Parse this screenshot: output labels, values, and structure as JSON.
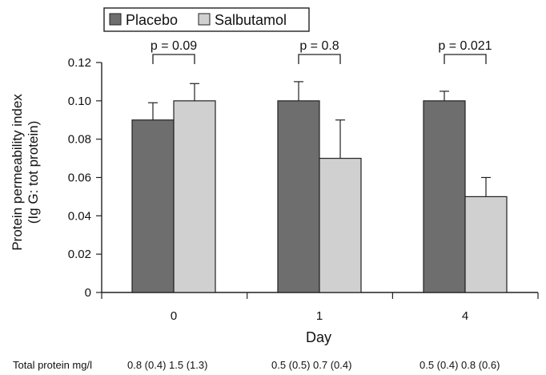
{
  "chart_data": {
    "type": "bar",
    "categories": [
      "0",
      "1",
      "4"
    ],
    "series": [
      {
        "name": "Placebo",
        "values": [
          0.09,
          0.1,
          0.1
        ],
        "errors": [
          0.009,
          0.01,
          0.005
        ]
      },
      {
        "name": "Salbutamol",
        "values": [
          0.1,
          0.07,
          0.05
        ],
        "errors": [
          0.009,
          0.02,
          0.01
        ]
      }
    ],
    "xlabel": "Day",
    "ylabel_line1": "Protein permeability index",
    "ylabel_line2": "(Ig G: tot protein)",
    "ylim": [
      0,
      0.12
    ],
    "yticks": [
      "0",
      "0.02",
      "0.04",
      "0.06",
      "0.08",
      "0.10",
      "0.12"
    ],
    "annotations": [
      "p = 0.09",
      "p = 0.8",
      "p = 0.021"
    ],
    "legend_position": "top-left",
    "grid": false,
    "colors": {
      "placebo": "#6e6e6e",
      "salbutamol": "#d0d0d0",
      "outline": "#222222"
    }
  },
  "footer": {
    "label": "Total protein mg/l",
    "values": [
      "0.8 (0.4) 1.5 (1.3)",
      "0.5 (0.5) 0.7 (0.4)",
      "0.5 (0.4) 0.8 (0.6)"
    ]
  }
}
